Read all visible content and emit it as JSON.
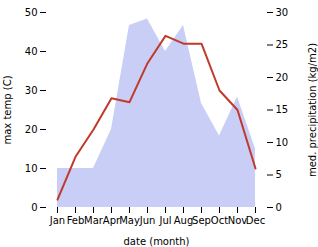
{
  "chart_data": {
    "type": "line",
    "categories": [
      "Jan",
      "Feb",
      "Mar",
      "Apr",
      "May",
      "Jun",
      "Jul",
      "Aug",
      "Sep",
      "Oct",
      "Nov",
      "Dec"
    ],
    "xlabel": "date (month)",
    "ylabel": "max temp (C)",
    "y2label": "med. precipitation (kg/m2)",
    "ylim": [
      0,
      50
    ],
    "yticks": [
      0,
      10,
      20,
      30,
      40,
      50
    ],
    "y2lim": [
      0,
      30
    ],
    "y2ticks": [
      0,
      5,
      10,
      15,
      20,
      25,
      30
    ],
    "grid": false,
    "series": [
      {
        "type": "area",
        "axis": "y2",
        "color": "#c8cef5",
        "values": [
          6,
          6,
          6,
          12,
          28,
          29,
          24,
          28,
          16,
          11,
          17,
          9
        ]
      },
      {
        "type": "line",
        "color": "#c0392b",
        "values": [
          2,
          13,
          20,
          28,
          27,
          37,
          44,
          42,
          42,
          30,
          25,
          10
        ]
      }
    ]
  }
}
